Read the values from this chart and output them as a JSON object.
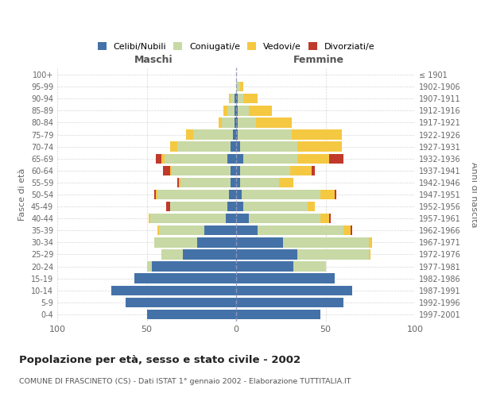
{
  "age_groups": [
    "100+",
    "95-99",
    "90-94",
    "85-89",
    "80-84",
    "75-79",
    "70-74",
    "65-69",
    "60-64",
    "55-59",
    "50-54",
    "45-49",
    "40-44",
    "35-39",
    "30-34",
    "25-29",
    "20-24",
    "15-19",
    "10-14",
    "5-9",
    "0-4"
  ],
  "birth_years": [
    "≤ 1901",
    "1902-1906",
    "1907-1911",
    "1912-1916",
    "1917-1921",
    "1922-1926",
    "1927-1931",
    "1932-1936",
    "1937-1941",
    "1942-1946",
    "1947-1951",
    "1952-1956",
    "1957-1961",
    "1962-1966",
    "1967-1971",
    "1972-1976",
    "1977-1981",
    "1982-1986",
    "1987-1991",
    "1992-1996",
    "1997-2001"
  ],
  "maschi": {
    "celibi": [
      0,
      0,
      1,
      1,
      1,
      2,
      3,
      5,
      3,
      3,
      4,
      5,
      6,
      18,
      22,
      30,
      47,
      57,
      70,
      62,
      50
    ],
    "coniugati": [
      0,
      0,
      2,
      4,
      7,
      22,
      30,
      35,
      33,
      28,
      40,
      32,
      42,
      25,
      24,
      12,
      3,
      0,
      0,
      0,
      0
    ],
    "vedovi": [
      0,
      0,
      1,
      2,
      2,
      4,
      4,
      2,
      1,
      1,
      1,
      0,
      1,
      1,
      0,
      0,
      0,
      0,
      0,
      0,
      0
    ],
    "divorziati": [
      0,
      0,
      0,
      0,
      0,
      0,
      0,
      3,
      4,
      1,
      1,
      2,
      0,
      0,
      0,
      0,
      0,
      0,
      0,
      0,
      0
    ]
  },
  "femmine": {
    "nubili": [
      0,
      0,
      1,
      1,
      1,
      1,
      2,
      4,
      2,
      2,
      3,
      4,
      7,
      12,
      26,
      34,
      32,
      55,
      65,
      60,
      47
    ],
    "coniugate": [
      0,
      2,
      3,
      6,
      10,
      30,
      32,
      30,
      28,
      22,
      44,
      36,
      40,
      48,
      48,
      40,
      18,
      0,
      0,
      0,
      0
    ],
    "vedove": [
      0,
      2,
      8,
      13,
      20,
      28,
      25,
      18,
      12,
      8,
      8,
      4,
      5,
      4,
      2,
      1,
      0,
      0,
      0,
      0,
      0
    ],
    "divorziate": [
      0,
      0,
      0,
      0,
      0,
      0,
      0,
      8,
      2,
      0,
      1,
      0,
      1,
      1,
      0,
      0,
      0,
      0,
      0,
      0,
      0
    ]
  },
  "colors": {
    "celibi": "#4472a8",
    "coniugati": "#c8d9a5",
    "vedovi": "#f5c842",
    "divorziati": "#c0392b"
  },
  "title": "Popolazione per età, sesso e stato civile - 2002",
  "subtitle": "COMUNE DI FRASCINETO (CS) - Dati ISTAT 1° gennaio 2002 - Elaborazione TUTTITALIA.IT",
  "xlabel_left": "Maschi",
  "xlabel_right": "Femmine",
  "ylabel_left": "Fasce di età",
  "ylabel_right": "Anni di nascita",
  "xlim": 100,
  "background_color": "#ffffff",
  "grid_color": "#cccccc"
}
